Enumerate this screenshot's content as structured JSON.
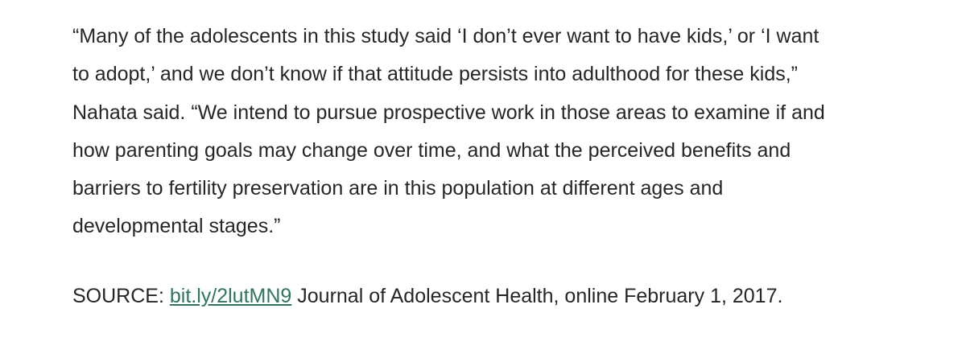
{
  "paragraph": {
    "lines": [
      "“Many of the adolescents in this study said ‘I don’t ever want to have kids,’ or ‘I want",
      "to adopt,’ and we don’t know if that attitude persists into adulthood for these kids,”",
      "Nahata said. “We intend to pursue prospective work in those areas to examine if and",
      "how parenting goals may change over time, and what the perceived benefits and",
      "barriers to fertility preservation are in this population at different ages and",
      "developmental stages.”"
    ]
  },
  "source": {
    "label": "SOURCE:",
    "link": "bit.ly/2lutMN9",
    "text": "Journal of Adolescent Health, online February 1, 2017."
  }
}
